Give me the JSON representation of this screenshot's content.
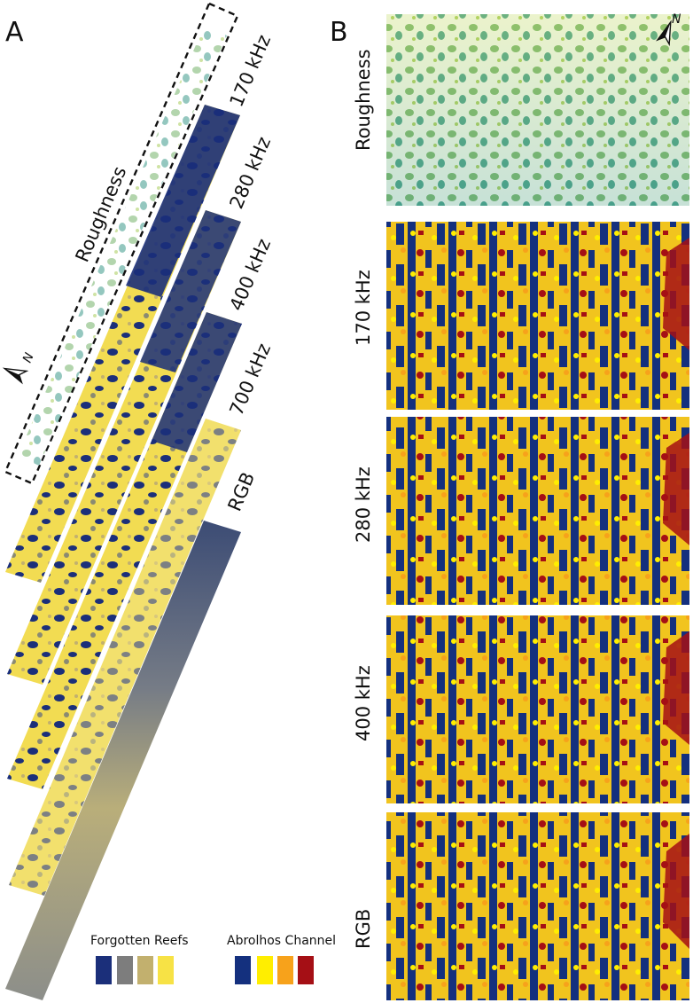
{
  "panel_a": {
    "letter": "A",
    "roughness_label": "Roughness",
    "strips": [
      {
        "label": "170 kHz",
        "style": "roughness"
      },
      {
        "label": "280 kHz",
        "style": "class"
      },
      {
        "label": "400 kHz",
        "style": "class"
      },
      {
        "label": "700 kHz",
        "style": "class"
      },
      {
        "label": "RGB",
        "style": "rgb"
      }
    ],
    "north_letter": "N"
  },
  "panel_b": {
    "letter": "B",
    "north_letter": "N",
    "maps": [
      {
        "label": "Roughness",
        "style": "roughness"
      },
      {
        "label": "170 kHz",
        "style": "class"
      },
      {
        "label": "280 kHz",
        "style": "class"
      },
      {
        "label": "400 kHz",
        "style": "class"
      },
      {
        "label": "RGB",
        "style": "class"
      }
    ]
  },
  "legend": {
    "forgotten_reefs": {
      "title": "Forgotten Reefs",
      "colors": [
        "#1b2f7a",
        "#7d7d7d",
        "#c2b06e",
        "#f7e245"
      ]
    },
    "abrolhos_channel": {
      "title": "Abrolhos Channel",
      "colors": [
        "#14307e",
        "#ffee00",
        "#f7a21b",
        "#a50f15"
      ]
    }
  }
}
